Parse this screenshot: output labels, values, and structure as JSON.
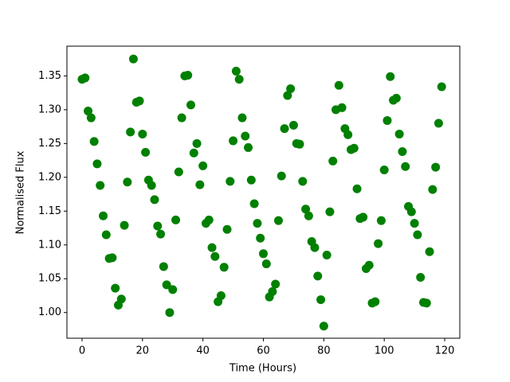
{
  "chart_data": {
    "type": "scatter",
    "xlabel": "Time (Hours)",
    "ylabel": "Normalised Flux",
    "color": "#008000",
    "grid": false,
    "xlim": [
      -5,
      125
    ],
    "ylim": [
      0.962,
      1.394
    ],
    "xticks": [
      0,
      20,
      40,
      60,
      80,
      100,
      120
    ],
    "yticks": [
      {
        "value": 1,
        "label": "1.00"
      },
      1.05,
      {
        "value": 1.1,
        "label": "1.10"
      },
      1.15,
      {
        "value": 1.2,
        "label": "1.20"
      },
      1.25,
      {
        "value": 1.3,
        "label": "1.30"
      },
      1.35
    ],
    "x": [
      0,
      1,
      2,
      3,
      4,
      5,
      6,
      7,
      8,
      9,
      10,
      11,
      12,
      13,
      14,
      15,
      16,
      17,
      18,
      19,
      20,
      21,
      22,
      23,
      24,
      25,
      26,
      27,
      28,
      29,
      30,
      31,
      32,
      33,
      34,
      35,
      36,
      37,
      38,
      39,
      40,
      41,
      42,
      43,
      44,
      45,
      46,
      47,
      48,
      49,
      50,
      51,
      52,
      53,
      54,
      55,
      56,
      57,
      58,
      59,
      60,
      61,
      62,
      63,
      64,
      65,
      66,
      67,
      68,
      69,
      70,
      71,
      72,
      73,
      74,
      75,
      76,
      77,
      78,
      79,
      80,
      81,
      82,
      83,
      84,
      85,
      86,
      87,
      88,
      89,
      90,
      91,
      92,
      93,
      94,
      95,
      96,
      97,
      98,
      99,
      100,
      101,
      102,
      103,
      104,
      105,
      106,
      107,
      108,
      109,
      110,
      111,
      112,
      113,
      114,
      115,
      116,
      117,
      118,
      119
    ],
    "values": [
      1.345,
      1.347,
      1.298,
      1.288,
      1.253,
      1.22,
      1.188,
      1.143,
      1.115,
      1.08,
      1.081,
      1.036,
      1.011,
      1.02,
      1.129,
      1.193,
      1.267,
      1.375,
      1.311,
      1.313,
      1.264,
      1.237,
      1.196,
      1.188,
      1.167,
      1.128,
      1.116,
      1.068,
      1.041,
      1.0,
      1.034,
      1.137,
      1.208,
      1.288,
      1.35,
      1.351,
      1.307,
      1.236,
      1.25,
      1.189,
      1.217,
      1.132,
      1.137,
      1.096,
      1.083,
      1.016,
      1.025,
      1.067,
      1.123,
      1.194,
      1.254,
      1.357,
      1.345,
      1.288,
      1.261,
      1.244,
      1.196,
      1.161,
      1.132,
      1.11,
      1.087,
      1.072,
      1.023,
      1.031,
      1.042,
      1.136,
      1.202,
      1.272,
      1.321,
      1.331,
      1.277,
      1.25,
      1.249,
      1.194,
      1.153,
      1.143,
      1.105,
      1.096,
      1.054,
      1.019,
      0.98,
      1.085,
      1.149,
      1.224,
      1.3,
      1.336,
      1.303,
      1.272,
      1.263,
      1.241,
      1.243,
      1.183,
      1.139,
      1.141,
      1.065,
      1.07,
      1.014,
      1.016,
      1.102,
      1.136,
      1.211,
      1.284,
      1.349,
      1.314,
      1.317,
      1.264,
      1.238,
      1.216,
      1.157,
      1.149,
      1.132,
      1.115,
      1.052,
      1.015,
      1.014,
      1.09,
      1.182,
      1.215,
      1.28,
      1.334
    ]
  }
}
